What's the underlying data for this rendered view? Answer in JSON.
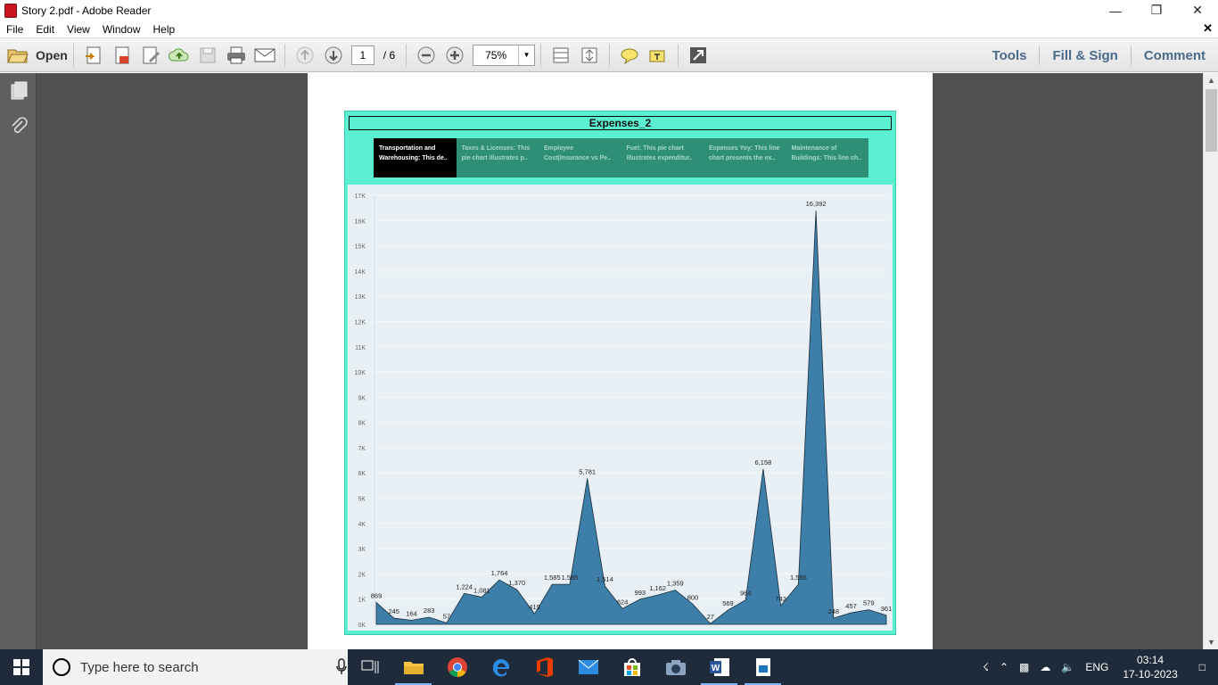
{
  "window": {
    "title": "Story 2.pdf - Adobe Reader"
  },
  "menu": [
    "File",
    "Edit",
    "View",
    "Window",
    "Help"
  ],
  "toolbar": {
    "open_label": "Open",
    "page_current": "1",
    "page_total": "/ 6",
    "zoom": "75%"
  },
  "right_links": {
    "tools": "Tools",
    "fill_sign": "Fill & Sign",
    "comment": "Comment"
  },
  "viz": {
    "title": "Expenses_2",
    "tabs": [
      "Transportation and Warehousing: This de..",
      "Taxes & Licenses: This pie chart illustrates p..",
      "Employee Cost(Insurance vs Pe..",
      "Fuel: This pie chart illustrates expenditur..",
      "Expenses Yoy: This line chart presents the ex..",
      "Maintenance of Buildings: This line ch.."
    ]
  },
  "chart_data": {
    "type": "area",
    "ylim": [
      0,
      17000
    ],
    "y_ticks": [
      "0K",
      "1K",
      "2K",
      "3K",
      "4K",
      "5K",
      "6K",
      "7K",
      "8K",
      "9K",
      "10K",
      "11K",
      "12K",
      "13K",
      "14K",
      "15K",
      "16K",
      "17K"
    ],
    "fill_color": "#3d7fa9",
    "values": [
      869,
      245,
      164,
      283,
      57,
      1224,
      1081,
      1764,
      1370,
      419,
      1585,
      1585,
      5781,
      1514,
      624,
      993,
      1162,
      1359,
      800,
      27,
      569,
      964,
      6158,
      742,
      1585,
      16392,
      248,
      457,
      579,
      361
    ],
    "labels": [
      "869",
      "245",
      "164",
      "283",
      "57",
      "1,224",
      "1,081",
      "1,764",
      "1,370",
      "419",
      "1,585",
      "1,585",
      "5,781",
      "1,514",
      "624",
      "993",
      "1,162",
      "1,359",
      "800",
      "27",
      "569",
      "964",
      "6,158",
      "742",
      "1,585",
      "16,392",
      "248",
      "457",
      "579",
      "361"
    ]
  },
  "taskbar": {
    "search_placeholder": "Type here to search",
    "lang": "ENG",
    "time": "03:14",
    "date": "17-10-2023"
  }
}
